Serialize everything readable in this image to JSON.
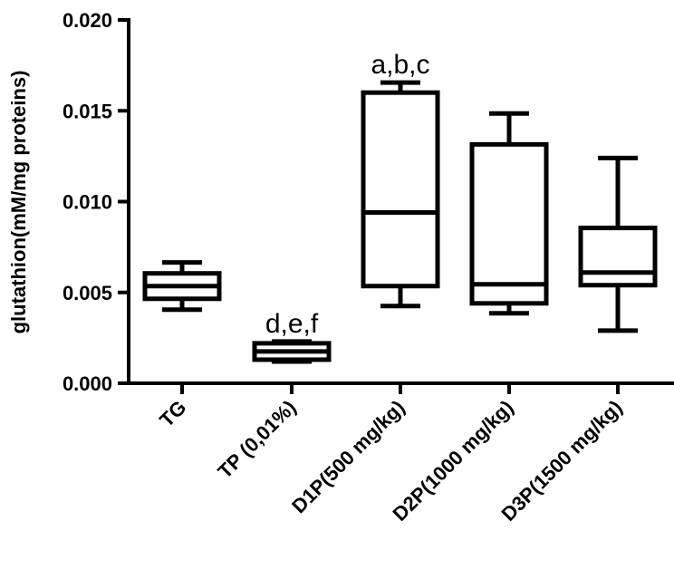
{
  "chart_data": {
    "type": "box",
    "title": "",
    "xlabel": "",
    "ylabel": "glutathion(mM/mg proteins)",
    "ylim": [
      0,
      0.02
    ],
    "yticks": [
      "0.000",
      "0.005",
      "0.010",
      "0.015",
      "0.020"
    ],
    "grid": false,
    "categories": [
      "TG",
      "TP (0,01%)",
      "D1P(500 mg/kg)",
      "D2P(1000 mg/kg)",
      "D3P(1500 mg/kg)"
    ],
    "boxes": [
      {
        "min": 0.00405,
        "q1": 0.00465,
        "median": 0.00535,
        "q3": 0.00605,
        "max": 0.00665,
        "annotation": ""
      },
      {
        "min": 0.0012,
        "q1": 0.0013,
        "median": 0.00175,
        "q3": 0.0022,
        "max": 0.0023,
        "annotation": "d,e,f"
      },
      {
        "min": 0.00425,
        "q1": 0.00535,
        "median": 0.0094,
        "q3": 0.016,
        "max": 0.01655,
        "annotation": "a,b,c"
      },
      {
        "min": 0.00385,
        "q1": 0.0044,
        "median": 0.00545,
        "q3": 0.01315,
        "max": 0.01485,
        "annotation": ""
      },
      {
        "min": 0.0029,
        "q1": 0.0054,
        "median": 0.0061,
        "q3": 0.00855,
        "max": 0.0124,
        "annotation": ""
      }
    ],
    "colors": {
      "stroke": "#000000",
      "fill": "#ffffff"
    }
  }
}
